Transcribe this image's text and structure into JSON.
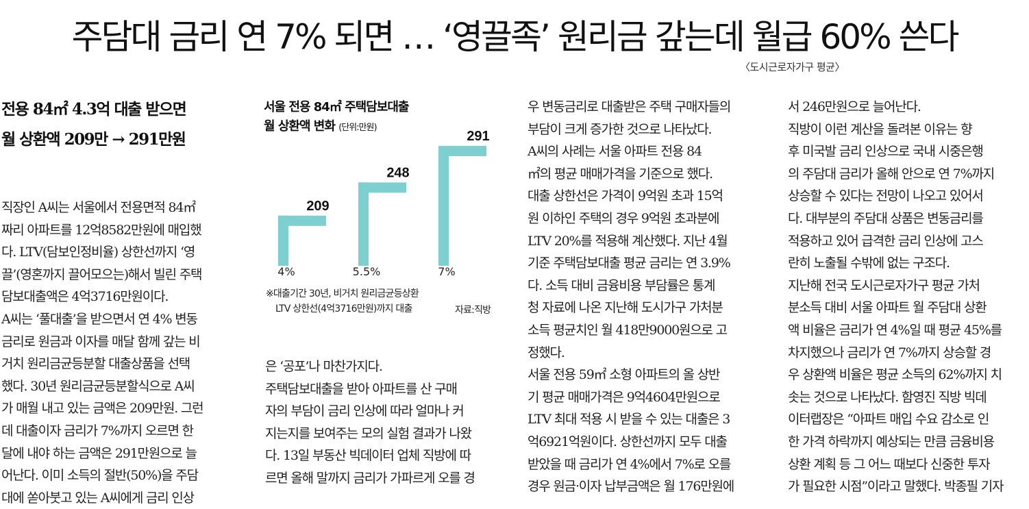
{
  "headline": "주담대 금리 연 7% 되면 … ‘영끌족’ 원리금 갚는데 월급 60% 쓴다",
  "note": "〈도시근로자가구 평균〉",
  "subheadline": [
    "전용 84㎡ 4.3억 대출 받으면",
    "월 상환액 209만 → 291만원"
  ],
  "chart_data": {
    "type": "bar",
    "title": [
      "서울 전용 84㎡ 주택담보대출",
      "월 상환액 변화"
    ],
    "unit": "(단위:만원)",
    "categories": [
      "4%",
      "5.5%",
      "7%"
    ],
    "values": [
      209,
      248,
      291
    ],
    "value_labels": [
      "209",
      "248",
      "291"
    ],
    "footnote": [
      "※대출기간 30년, 비거치 원리금균등상환",
      "LTV 상한선(4억3716만원)까지 대출"
    ],
    "source": "자료:직방",
    "bar_color": "#7ecfcf"
  },
  "columns": {
    "col1": [
      "직장인 A씨는 서울에서 전용면적 84㎡",
      "짜리 아파트를 12억8582만원에 매입했",
      "다. LTV(담보인정비율) 상한선까지 ‘영",
      "끌’(영혼까지 끌어모으는)해서 빌린 주택",
      "담보대출액은 4억3716만원이다.",
      "  A씨는 ‘풀대출’을 받으면서 연 4% 변동",
      "금리로 원금과 이자를 매달 함께 갚는 비",
      "거치 원리금균등분할 대출상품을 선택",
      "했다. 30년 원리금균등분할식으로 A씨",
      "가 매월 내고 있는 금액은 209만원. 그런",
      "데 대출이자 금리가 7%까지 오르면 한",
      "달에 내야 하는 금액은 291만원으로 늘",
      "어난다. 이미 소득의 절반(50%)을 주담",
      "대에 쏟아붓고 있는 A씨에게 금리 인상"
    ],
    "col2": [
      "은 ‘공포’나 마찬가지다.",
      "  주택담보대출을 받아 아파트를 산 구매",
      "자의 부담이 금리 인상에 따라 얼마나 커",
      "지는지를 보여주는 모의 실험 결과가 나왔",
      "다. 13일 부동산 빅데이터 업체 직방에 따",
      "르면 올해 말까지 금리가 가파르게 오를 경"
    ],
    "col3": [
      "우 변동금리로 대출받은 주택 구매자들의",
      "부담이 크게 증가한 것으로 나타났다.",
      "  A씨의 사례는 서울 아파트 전용 84",
      "㎡의 평균 매매가격을 기준으로 했다.",
      "대출 상한선은 가격이 9억원 초과 15억",
      "원 이하인 주택의 경우 9억원 초과분에",
      "LTV 20%를 적용해 계산했다. 지난 4월",
      "기준 주택담보대출 평균 금리는 연 3.9%",
      "다. 소득 대비 금융비용 부담률은 통계",
      "청 자료에 나온 지난해 도시가구 가처분",
      "소득 평균치인 월 418만9000원으로 고",
      "정했다.",
      "  서울 전용 59㎡ 소형 아파트의 올 상반",
      "기 평균 매매가격은 9억4604만원으로",
      "LTV 최대 적용 시 받을 수 있는 대출은 3",
      "억6921억원이다. 상한선까지 모두 대출",
      "받았을 때 금리가 연 4%에서 7%로 오를",
      "경우 원금·이자 납부금액은 월 176만원에"
    ],
    "col4": [
      "서 246만원으로 늘어난다.",
      "  직방이 이런 계산을 돌려본 이유는 향",
      "후 미국발 금리 인상으로 국내 시중은행",
      "의 주담대 금리가 올해 안으로 연 7%까지",
      "상승할 수 있다는 전망이 나오고 있어서",
      "다. 대부분의 주담대 상품은 변동금리를",
      "적용하고 있어 급격한 금리 인상에 고스",
      "란히 노출될 수밖에 없는 구조다.",
      "  지난해 전국 도시근로자가구 평균 가처",
      "분소득 대비 서울 아파트 월 주담대 상환",
      "액 비율은 금리가 연 4%일 때 평균 45%를",
      "차지했으나 금리가 연 7%까지 상승할 경",
      "우 상환액 비율은 평균 소득의 62%까지 치",
      "솟는 것으로 나타났다. 함영진 직방 빅데",
      "이터랩장은 “아파트 매입 수요 감소로 인",
      "한 가격 하락까지 예상되는 만큼 금융비용",
      "상환 계획 등 그 어느 때보다 신중한 투자",
      "가 필요한 시점”이라고 말했다.  박종필 기자"
    ]
  }
}
